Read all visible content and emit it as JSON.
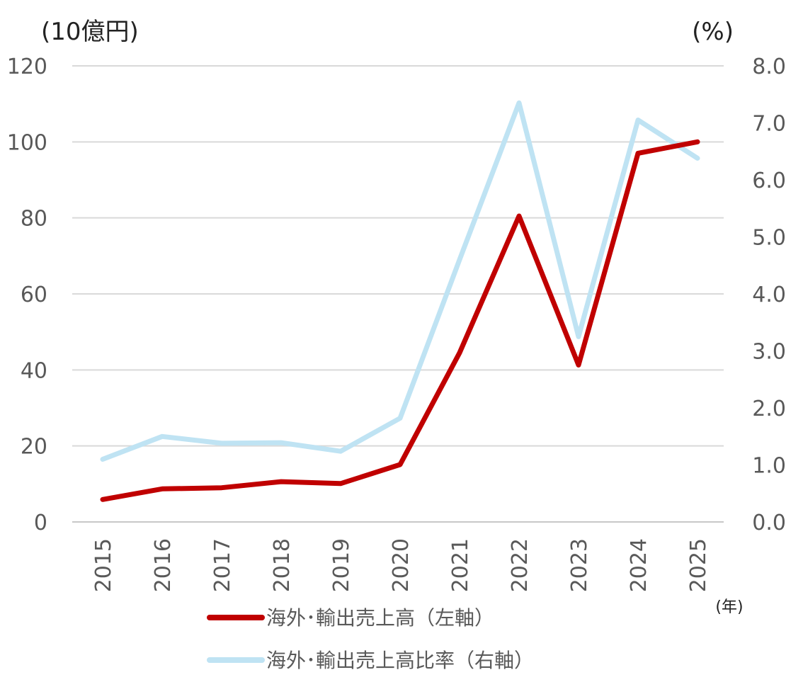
{
  "chart_data": {
    "type": "line",
    "y_left_unit": "(10億円)",
    "y_right_unit": "(%)",
    "x_unit": "(年)",
    "categories": [
      "2015",
      "2016",
      "2017",
      "2018",
      "2019",
      "2020",
      "2021",
      "2022",
      "2023",
      "2024",
      "2025"
    ],
    "y_left": {
      "lim": [
        0,
        120
      ],
      "ticks": [
        "0",
        "20",
        "40",
        "60",
        "80",
        "100",
        "120"
      ],
      "tick_values": [
        0,
        20,
        40,
        60,
        80,
        100,
        120
      ]
    },
    "y_right": {
      "lim": [
        0,
        8
      ],
      "ticks": [
        "0.0",
        "1.0",
        "2.0",
        "3.0",
        "4.0",
        "5.0",
        "6.0",
        "7.0",
        "8.0"
      ],
      "tick_values": [
        0,
        1,
        2,
        3,
        4,
        5,
        6,
        7,
        8
      ]
    },
    "grid": true,
    "legend_position": "bottom",
    "series": [
      {
        "name": "海外･輸出売上高（左軸）",
        "axis": "left",
        "color": "#c00000",
        "values": [
          5.9,
          8.7,
          9.0,
          10.6,
          10.1,
          15.1,
          44.5,
          80.5,
          41.3,
          97.0,
          100.0
        ]
      },
      {
        "name": "海外･輸出売上高比率（右軸）",
        "axis": "right",
        "color": "#bfe3f3",
        "values": [
          1.1,
          1.5,
          1.38,
          1.39,
          1.24,
          1.82,
          4.6,
          7.35,
          3.25,
          7.05,
          6.38
        ]
      }
    ]
  }
}
